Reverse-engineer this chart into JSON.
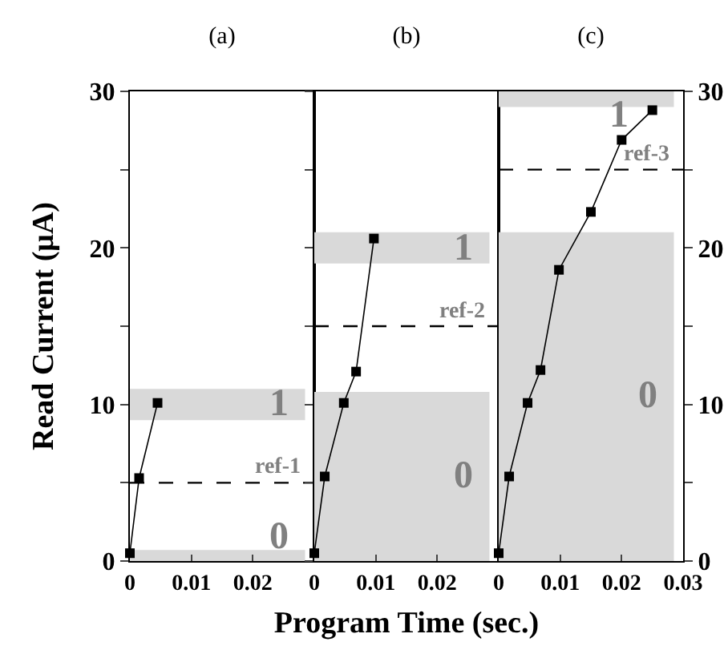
{
  "chart_data": [
    {
      "type": "line",
      "title": "(a)",
      "ylabel": "Read Current (μA)",
      "marker": "square",
      "line_style": "solid",
      "grid": false,
      "xlim": [
        0,
        0.03
      ],
      "xticks": [
        0,
        0.01,
        0.02
      ],
      "ylim": [
        0,
        30
      ],
      "yticks": [
        0,
        {
          "value": 5,
          "label": null
        },
        10,
        {
          "value": 15,
          "label": null
        },
        20,
        {
          "value": 25,
          "label": null
        },
        30
      ],
      "x": [
        0,
        0.0015,
        0.0045
      ],
      "series": [
        {
          "color": "#000000",
          "values": [
            0.5,
            5.3,
            10.1
          ]
        }
      ],
      "ref_lines": [
        {
          "axis": "y",
          "value": 5,
          "label": "ref-1",
          "line_style": "dashed",
          "color": "#000000"
        }
      ],
      "bands": [
        {
          "axis": "y",
          "from": 9,
          "to": 11,
          "label": "1",
          "color": "#d9d9d9"
        },
        {
          "axis": "y",
          "from": 0,
          "to": 0.7,
          "label": "0",
          "color": "#d9d9d9"
        }
      ]
    },
    {
      "type": "line",
      "title": "(b)",
      "xlabel": "Program Time (sec.)",
      "marker": "square",
      "line_style": "solid",
      "grid": false,
      "tick_labels": "x",
      "xlim": [
        0,
        0.03
      ],
      "xticks": [
        0,
        0.01,
        0.02
      ],
      "ylim": [
        0,
        30
      ],
      "yticks": [
        {
          "value": 0,
          "label": null
        },
        {
          "value": 5,
          "label": null
        },
        {
          "value": 10,
          "label": null
        },
        {
          "value": 15,
          "label": null
        },
        {
          "value": 20,
          "label": null
        },
        {
          "value": 25,
          "label": null
        },
        {
          "value": 30,
          "label": null
        }
      ],
      "x": [
        0,
        0.0017,
        0.0048,
        0.0068,
        0.0097
      ],
      "series": [
        {
          "color": "#000000",
          "values": [
            0.5,
            5.4,
            10.1,
            12.1,
            20.6
          ]
        }
      ],
      "ref_lines": [
        {
          "axis": "y",
          "value": 15,
          "label": "ref-2",
          "line_style": "dashed",
          "color": "#000000"
        }
      ],
      "bands": [
        {
          "axis": "y",
          "from": 19,
          "to": 21,
          "label": "1",
          "color": "#d9d9d9"
        },
        {
          "axis": "y",
          "from": 0,
          "to": 10.8,
          "label": "0",
          "color": "#d9d9d9"
        }
      ]
    },
    {
      "type": "line",
      "title": "(c)",
      "marker": "square",
      "line_style": "solid",
      "grid": false,
      "xlim": [
        0,
        0.03
      ],
      "xticks": [
        0,
        0.01,
        0.02,
        0.03
      ],
      "ylim": [
        0,
        30
      ],
      "yticks": [
        0,
        {
          "value": 5,
          "label": null
        },
        10,
        {
          "value": 15,
          "label": null
        },
        20,
        {
          "value": 25,
          "label": null
        },
        30
      ],
      "x": [
        0,
        0.0017,
        0.0047,
        0.0068,
        0.0098,
        0.015,
        0.02,
        0.025
      ],
      "series": [
        {
          "color": "#000000",
          "values": [
            0.5,
            5.4,
            10.1,
            12.2,
            18.6,
            22.3,
            26.9,
            28.8
          ]
        }
      ],
      "ref_lines": [
        {
          "axis": "y",
          "value": 25,
          "label": "ref-3",
          "line_style": "dashed",
          "color": "#000000"
        }
      ],
      "bands": [
        {
          "axis": "y",
          "from": 29,
          "to": 30,
          "label": "1",
          "color": "#d9d9d9"
        },
        {
          "axis": "y",
          "from": 0,
          "to": 21,
          "label": "0",
          "color": "#d9d9d9"
        }
      ]
    }
  ]
}
